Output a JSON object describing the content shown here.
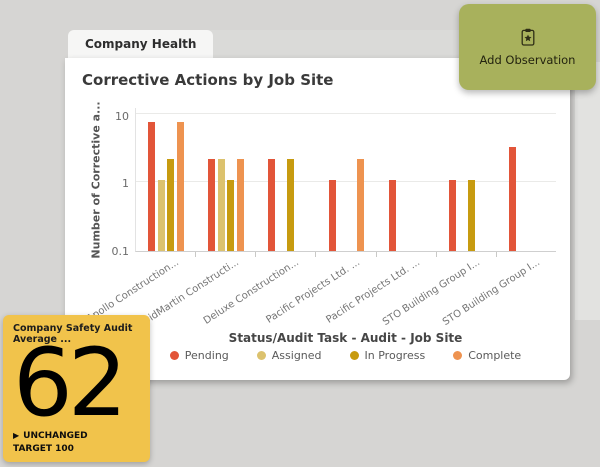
{
  "tab": {
    "label": "Company Health"
  },
  "add_observation_button": {
    "label": "Add Observation",
    "icon": "clipboard-observation-icon",
    "background": "#a8b15c"
  },
  "chart_data": {
    "type": "bar",
    "title": "Corrective Actions by Job Site",
    "xlabel": "Status/Audit Task - Audit - Job Site",
    "ylabel": "Number of Corrective a...",
    "y_scale": "log",
    "ylim": [
      0.1,
      10
    ],
    "y_ticks": [
      "10",
      "1",
      "0.1"
    ],
    "grid": true,
    "legend_position": "bottom",
    "categories": [
      "Apollo Construction...",
      "BidMartin Constructi...",
      "Deluxe Construction...",
      "Pacific Projects Ltd. ...",
      "Pacific Projects Ltd. ...",
      "STO Building Group I...",
      "STO Building Group I..."
    ],
    "series": [
      {
        "name": "Pending",
        "color": "#e25539",
        "values": [
          7,
          2,
          2,
          1,
          1,
          1,
          3
        ]
      },
      {
        "name": "Assigned",
        "color": "#dcc26e",
        "values": [
          1,
          2,
          null,
          null,
          null,
          null,
          null
        ]
      },
      {
        "name": "In Progress",
        "color": "#c79b10",
        "values": [
          2,
          1,
          2,
          null,
          null,
          1,
          null
        ]
      },
      {
        "name": "Complete",
        "color": "#ee9350",
        "values": [
          7,
          2,
          null,
          2,
          null,
          null,
          null
        ]
      }
    ]
  },
  "kpi_card": {
    "title": "Company Safety Audit Average ...",
    "value": "62",
    "trend_icon": "right-triangle-icon",
    "trend_label": "UNCHANGED",
    "target_label": "TARGET 100",
    "background": "#f1c34b"
  }
}
